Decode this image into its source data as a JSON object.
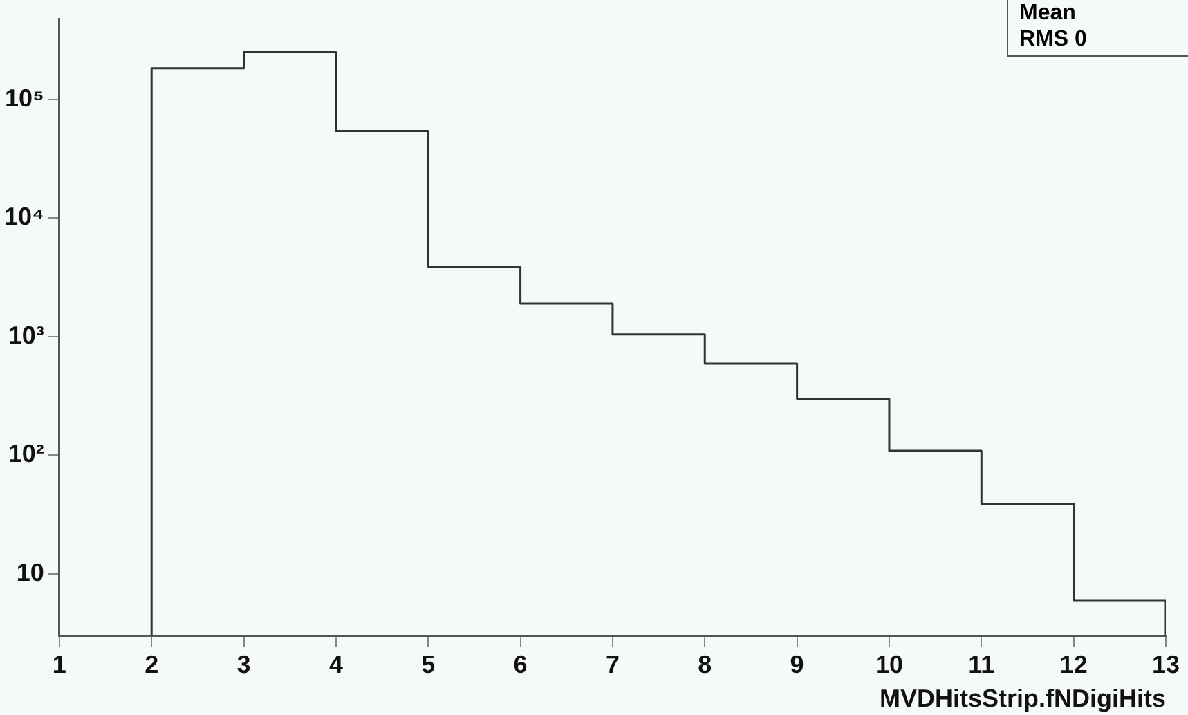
{
  "chart_data": {
    "type": "histogram",
    "xlabel": "MVDHitsStrip.fNDigiHits",
    "bins": [
      2,
      3,
      4,
      5,
      6,
      7,
      8,
      9,
      10,
      11,
      12,
      13
    ],
    "values": [
      183000,
      250000,
      54000,
      3900,
      1900,
      1040,
      590,
      300,
      109,
      39,
      6
    ],
    "color": "#333333",
    "xlim": [
      1,
      13
    ],
    "xticks": [
      1,
      2,
      3,
      4,
      5,
      6,
      7,
      8,
      9,
      10,
      11,
      12,
      13
    ],
    "ylim": [
      3,
      475000
    ],
    "yticks": [
      {
        "value": 10,
        "label": "10"
      },
      {
        "value": 100,
        "label": "10²"
      },
      {
        "value": 1000,
        "label": "10³"
      },
      {
        "value": 10000,
        "label": "10⁴"
      },
      {
        "value": 100000,
        "label": "10⁵"
      }
    ],
    "log": "y",
    "grid": false,
    "legend": false,
    "annotations": [
      "Mean",
      "RMS 0"
    ]
  }
}
